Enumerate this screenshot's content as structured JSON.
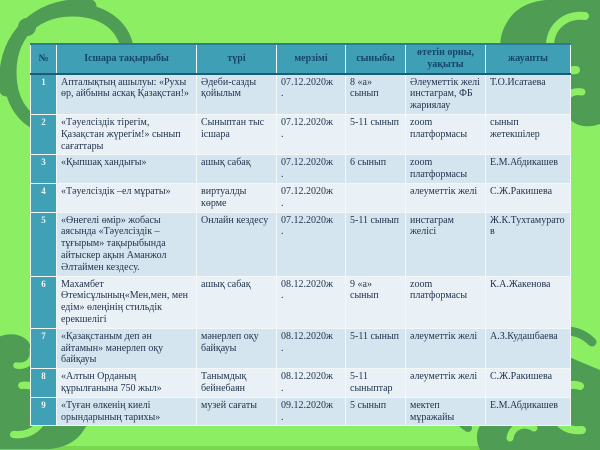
{
  "theme": {
    "bg_green": "#8cee62",
    "ornament_dark": "#4f9c55",
    "ornament_light": "#8cee62",
    "header_bg": "#3e9fb5",
    "header_text": "#17456b",
    "numcol_bg": "#3fa0b6",
    "row_odd": "#d5e5ef",
    "row_even": "#e9f1f6"
  },
  "decor": {
    "corner_icon": "kazakh-horn-ornament"
  },
  "table": {
    "headers": [
      "№",
      "Ісшара  тақырыбы",
      "түрі",
      "мерзімі",
      "сыныбы",
      "өтетін орны,\nуақыты",
      "жауапты"
    ],
    "rows": [
      {
        "num": "1",
        "topic": "Апталықтың ашылуы:  «Рухы өр, айбыны аскақ Қазақстан!»",
        "type": "Әдеби-сазды қойылым",
        "date": "07.12.2020ж\n.",
        "grade": "8 «а» сынып",
        "venue": "Әлеуметтік желі инстаграм, ФБ жариялау",
        "responsible": "Т.О.Исатаева"
      },
      {
        "num": "2",
        "topic": "«Тәуелсіздік  тірегім, Қазақстан жүрегім!»  сынып сағаттары",
        "type": "Сыныптан тыс ісшара",
        "date": "07.12.2020ж\n.",
        "grade": "5-11 сынып",
        "venue": "zoom платформасы",
        "responsible": "сынып жетекшілер"
      },
      {
        "num": "3",
        "topic": "«Қыпшақ хандығы»",
        "type": "ашық сабақ",
        "date": "07.12.2020ж\n.",
        "grade": "6 сынып",
        "venue": "zoom платформасы",
        "responsible": "Е.М.Абдикашев"
      },
      {
        "num": "4",
        "topic": "«Тәуелсіздік  –ел мұраты»",
        "type": "виртуалды көрме",
        "date": "07.12.2020ж\n.",
        "grade": "",
        "venue": "әлеуметтік желі",
        "responsible": "С.Ж.Ракишева"
      },
      {
        "num": "5",
        "topic": "«Өнегелі өмір»  жобасы аясында «Тәуелсіздік  – тұғырым» тақырыбында айтыскер ақын Аманжол Әлтаймен  кездесу.",
        "type": "Онлайн кездесу",
        "date": "07.12.2020ж\n.",
        "grade": "5-11 сынып",
        "venue": "инстаграм желісі",
        "responsible": "Ж.К.Тухтамуратов"
      },
      {
        "num": "6",
        "topic": "Махамбет Өтемісұлының«Мен,мен, мен едім»  өлеңінің стильдік ерекшелігі",
        "type": "ашық сабақ",
        "date": "08.12.2020ж\n.",
        "grade": "9 «а» сынып",
        "venue": "zoom платформасы",
        "responsible": "К.А.Жакенова"
      },
      {
        "num": "7",
        "topic": "«Қазақстаным  деп ән айтамын» мәнерлеп оқу байқауы",
        "type": "мәнерлеп оқу байқауы",
        "date": "08.12.2020ж\n.",
        "grade": "5-11 сынып",
        "venue": "әлеуметтік желі",
        "responsible": "А.З.Кудашбаева"
      },
      {
        "num": "8",
        "topic": "«Алтын Орданың құрылғанына 750 жыл»",
        "type": "Танымдық бейнебаян",
        "date": "08.12.2020ж\n.",
        "grade": "5-11 сыныптар",
        "venue": "әлеуметтік желі",
        "responsible": "С.Ж.Ракишева"
      },
      {
        "num": "9",
        "topic": "«Туған  өлкенің киелі орындарының тарихы»",
        "type": "музей сағаты",
        "date": "09.12.2020ж\n.",
        "grade": "5 сынып",
        "venue": "мектеп мұражайы",
        "responsible": "Е.М.Абдикашев"
      }
    ]
  }
}
